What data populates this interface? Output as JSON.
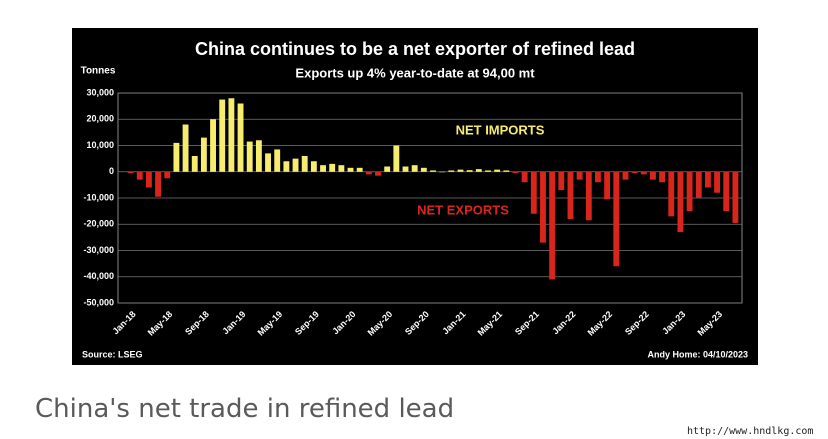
{
  "chart_data": {
    "type": "bar",
    "title": "China continues to be a net exporter of refined lead",
    "subtitle": "Exports up 4% year-to-date at 94,00 mt",
    "y_label": "Tonnes",
    "source": "Source: LSEG",
    "credit": "Andy Home: 04/10/2023",
    "annotations": [
      "NET IMPORTS",
      "NET EXPORTS"
    ],
    "positive_color": "#f6ec6e",
    "negative_color": "#d9261c",
    "categories": [
      "Jan-18",
      null,
      null,
      null,
      "May-18",
      null,
      null,
      null,
      "Sep-18",
      null,
      null,
      null,
      "Jan-19",
      null,
      null,
      null,
      "May-19",
      null,
      null,
      null,
      "Sep-19",
      null,
      null,
      null,
      "Jan-20",
      null,
      null,
      null,
      "May-20",
      null,
      null,
      null,
      "Sep-20",
      null,
      null,
      null,
      "Jan-21",
      null,
      null,
      null,
      "May-21",
      null,
      null,
      null,
      "Sep-21",
      null,
      null,
      null,
      "Jan-22",
      null,
      null,
      null,
      "May-22",
      null,
      null,
      null,
      "Sep-22",
      null,
      null,
      null,
      "Jan-23",
      null,
      null,
      null,
      "May-23",
      null,
      null
    ],
    "values": [
      -500,
      -3000,
      -6000,
      -9500,
      -2500,
      11000,
      18000,
      6000,
      13000,
      20000,
      27500,
      28000,
      26000,
      11500,
      12000,
      7000,
      8500,
      4000,
      5000,
      6000,
      4000,
      2500,
      3000,
      2500,
      1500,
      1500,
      -1000,
      -1500,
      2000,
      10000,
      2000,
      2500,
      1500,
      500,
      0,
      500,
      800,
      600,
      1000,
      500,
      800,
      500,
      -500,
      -4000,
      -16000,
      -27000,
      -41000,
      -7000,
      -18000,
      -3000,
      -18500,
      -4000,
      -10500,
      -36000,
      -3000,
      -500,
      -1000,
      -3000,
      -4000,
      -17000,
      -23000,
      -15000,
      -10000,
      -6000,
      -8000,
      -15000,
      -19500
    ],
    "ylim": [
      -50000,
      30000
    ],
    "yticks": [
      {
        "value": 30000,
        "label": "30,000"
      },
      {
        "value": 20000,
        "label": "20,000"
      },
      {
        "value": 10000,
        "label": "10,000"
      },
      0,
      {
        "value": -10000,
        "label": "-10,000"
      },
      {
        "value": -20000,
        "label": "-20,000"
      },
      {
        "value": -30000,
        "label": "-30,000"
      },
      {
        "value": -40000,
        "label": "-40,000"
      },
      {
        "value": -50000,
        "label": "-50,000"
      }
    ],
    "grid": true
  },
  "caption": "China's net trade in refined lead",
  "watermark": "http://www.hndlkg.com"
}
